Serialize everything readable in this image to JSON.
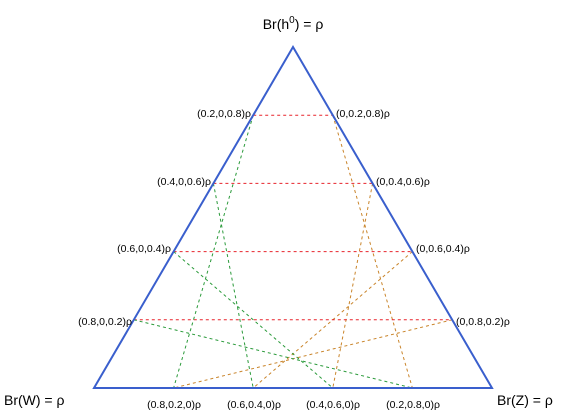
{
  "diagram": {
    "colors": {
      "triangle": "#3a5fcd",
      "horizontal_lines": "#e8242c",
      "left_lean_lines": "#c9842a",
      "right_lean_lines": "#2a9a3a",
      "text": "#000000"
    },
    "corners": {
      "top": {
        "prefix": "Br(h",
        "sup": "0",
        "suffix": ") = ρ"
      },
      "bottom_left": "Br(W) = ρ",
      "bottom_right": "Br(Z) = ρ"
    },
    "left_edge_labels": [
      "(0.2,0,0.8)ρ",
      "(0.4,0,0.6)ρ",
      "(0.6,0,0.4)ρ",
      "(0.8,0,0.2)ρ"
    ],
    "right_edge_labels": [
      "(0,0.2,0.8)ρ",
      "(0,0.4,0.6)ρ",
      "(0,0.6,0.4)ρ",
      "(0,0.8,0.2)ρ"
    ],
    "bottom_edge_labels": [
      "(0.8,0.2,0)ρ",
      "(0.6,0.4,0)ρ",
      "(0.4,0.6,0)ρ",
      "(0.2,0.8,0)ρ"
    ]
  }
}
